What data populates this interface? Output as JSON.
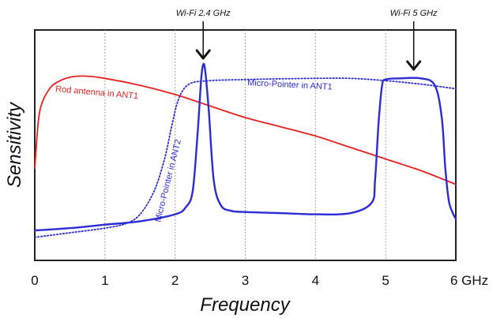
{
  "chart_data": {
    "type": "line",
    "xlabel": "Frequency",
    "ylabel": "Sensitivity",
    "xlim": [
      0,
      6
    ],
    "ylim": [
      0,
      100
    ],
    "x_ticks": [
      "0",
      "1",
      "2",
      "3",
      "4",
      "5",
      "6 GHz"
    ],
    "grid": "vertical dotted",
    "annotations": [
      {
        "label": "Wi-Fi 2.4 GHz",
        "x": 2.4
      },
      {
        "label": "Wi-Fi 5 GHz",
        "x": 5.4
      }
    ],
    "series": [
      {
        "name": "Rod antenna in ANT1",
        "color": "#e8201c",
        "style": "solid",
        "x": [
          0,
          0.05,
          0.1,
          0.2,
          0.3,
          0.5,
          0.7,
          1.0,
          1.5,
          2.0,
          2.5,
          3.0,
          3.5,
          4.0,
          4.5,
          5.0,
          5.5,
          6.0
        ],
        "values": [
          40,
          60,
          68,
          74,
          77,
          79.5,
          80,
          79,
          76,
          72,
          67,
          62,
          58,
          54,
          49,
          44,
          39,
          33
        ]
      },
      {
        "name": "Micro-Pointer in ANT1",
        "color": "#2b2bd8",
        "style": "dotted",
        "x": [
          0,
          0.5,
          1.0,
          1.3,
          1.5,
          1.7,
          1.85,
          1.95,
          2.05,
          2.2,
          2.5,
          3.0,
          3.5,
          4.0,
          4.5,
          5.0,
          5.5,
          6.0
        ],
        "values": [
          10,
          12,
          14,
          16,
          20,
          30,
          44,
          58,
          70,
          76.5,
          78,
          78.5,
          78.8,
          79,
          79,
          78,
          76.5,
          74.5
        ]
      },
      {
        "name": "Micro-Pointer in ANT2",
        "color": "#2b2bd8",
        "style": "solid",
        "x": [
          0,
          0.5,
          1.0,
          1.5,
          2.0,
          2.15,
          2.25,
          2.32,
          2.37,
          2.4,
          2.43,
          2.48,
          2.55,
          2.65,
          2.8,
          3.0,
          3.5,
          4.0,
          4.5,
          4.8,
          4.85,
          4.9,
          4.95,
          5.0,
          5.2,
          5.5,
          5.7,
          5.8,
          5.85,
          5.9,
          5.95,
          6.0
        ],
        "values": [
          13,
          14,
          15.5,
          17,
          20,
          23,
          30,
          55,
          78,
          85,
          82,
          65,
          35,
          24,
          21.5,
          21,
          20.5,
          20,
          20.5,
          25,
          35,
          60,
          76,
          78.5,
          79,
          79,
          76,
          62,
          40,
          26,
          21,
          18
        ]
      }
    ]
  },
  "series_label_colors": {
    "red": "#e8201c",
    "blue": "#2b2bd8"
  }
}
